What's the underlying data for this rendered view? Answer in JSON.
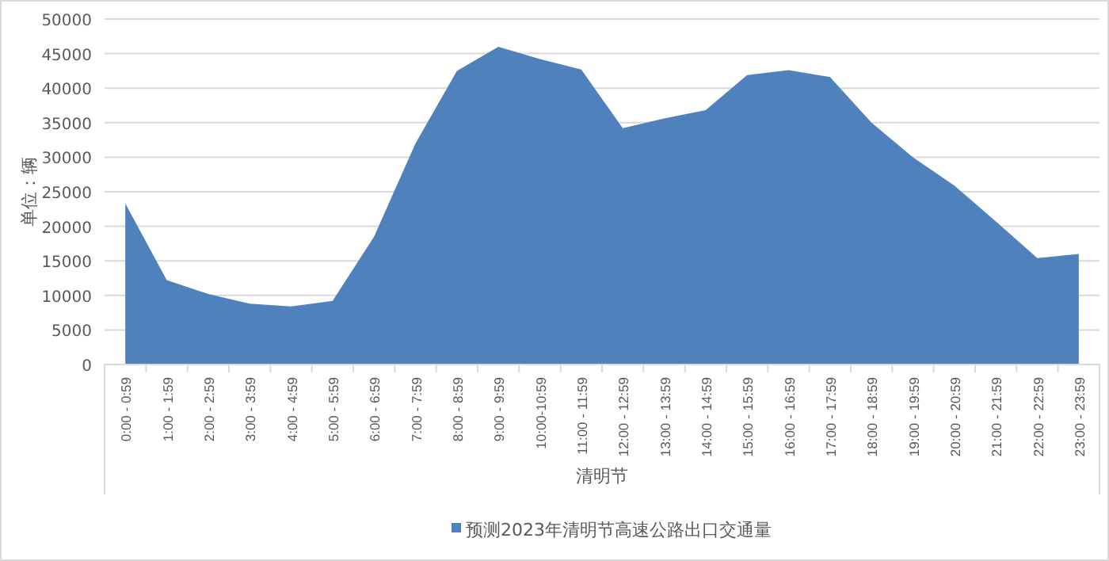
{
  "chart_data": {
    "type": "area",
    "xlabel": "清明节",
    "ylabel": "单位：辆",
    "categories": [
      "0:00 - 0:59",
      "1:00 - 1:59",
      "2:00 - 2:59",
      "3:00 - 3:59",
      "4:00 - 4:59",
      "5:00 - 5:59",
      "6:00 - 6:59",
      "7:00 - 7:59",
      "8:00 - 8:59",
      "9:00 - 9:59",
      "10:00-10:59",
      "11:00 - 11:59",
      "12:00 - 12:59",
      "13:00 - 13:59",
      "14:00 - 14:59",
      "15:00 - 15:59",
      "16:00 - 16:59",
      "17:00 - 17:59",
      "18:00 - 18:59",
      "19:00 - 19:59",
      "20:00 - 20:59",
      "21:00 - 21:59",
      "22:00 - 22:59",
      "23:00 - 23:59"
    ],
    "series": [
      {
        "name": "预测2023年清明节高速公路出口交通量",
        "color": "#4f81bd",
        "values": [
          23300,
          12200,
          10200,
          8800,
          8400,
          9200,
          18500,
          32000,
          42500,
          46000,
          44200,
          42700,
          34200,
          35600,
          36800,
          41900,
          42600,
          41600,
          35000,
          30000,
          25900,
          20700,
          15400,
          16000
        ]
      }
    ],
    "ylim": [
      0,
      50000
    ],
    "yticks": [
      0,
      5000,
      10000,
      15000,
      20000,
      25000,
      30000,
      35000,
      40000,
      45000,
      50000
    ],
    "grid": "y",
    "legend": "bottom"
  }
}
